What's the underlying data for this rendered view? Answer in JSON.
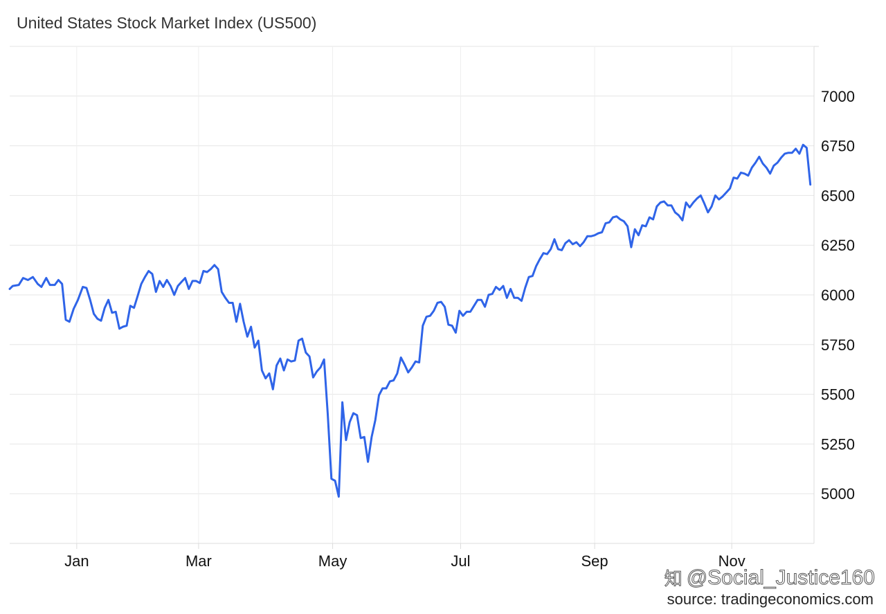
{
  "title": "United States Stock Market Index (US500)",
  "source": "source: tradingeconomics.com",
  "watermark": {
    "text": "@Social_Justice160",
    "icon": "zhihu-logo-icon"
  },
  "colors": {
    "line": "#2f64e8",
    "grid": "#e6e6e6",
    "text": "#111111"
  },
  "chart_data": {
    "type": "line",
    "title": "United States Stock Market Index (US500)",
    "xlabel": "",
    "ylabel": "",
    "ylim": [
      4750,
      7250
    ],
    "yticks": [
      5000,
      5250,
      5500,
      5750,
      6000,
      6250,
      6500,
      6750,
      7000
    ],
    "xticks": [
      {
        "label": "Jan",
        "t": 1
      },
      {
        "label": "Mar",
        "t": 3
      },
      {
        "label": "May",
        "t": 5.2
      },
      {
        "label": "Jul",
        "t": 7.3
      },
      {
        "label": "Sep",
        "t": 9.5
      },
      {
        "label": "Nov",
        "t": 11.75
      }
    ],
    "xlim": [
      -0.1,
      13.1
    ],
    "grid": true,
    "series": [
      {
        "values": [
          [
            -0.1,
            6030
          ],
          [
            -0.05,
            6045
          ],
          [
            0.05,
            6050
          ],
          [
            0.12,
            6085
          ],
          [
            0.2,
            6075
          ],
          [
            0.28,
            6090
          ],
          [
            0.36,
            6055
          ],
          [
            0.42,
            6040
          ],
          [
            0.5,
            6085
          ],
          [
            0.56,
            6050
          ],
          [
            0.64,
            6050
          ],
          [
            0.7,
            6075
          ],
          [
            0.76,
            6055
          ],
          [
            0.82,
            5875
          ],
          [
            0.88,
            5865
          ],
          [
            0.95,
            5930
          ],
          [
            1.02,
            5975
          ],
          [
            1.1,
            6040
          ],
          [
            1.16,
            6035
          ],
          [
            1.22,
            5975
          ],
          [
            1.28,
            5905
          ],
          [
            1.34,
            5880
          ],
          [
            1.4,
            5870
          ],
          [
            1.46,
            5935
          ],
          [
            1.52,
            5975
          ],
          [
            1.58,
            5910
          ],
          [
            1.64,
            5915
          ],
          [
            1.7,
            5830
          ],
          [
            1.76,
            5840
          ],
          [
            1.82,
            5845
          ],
          [
            1.88,
            5945
          ],
          [
            1.94,
            5935
          ],
          [
            2.0,
            5995
          ],
          [
            2.06,
            6055
          ],
          [
            2.12,
            6090
          ],
          [
            2.18,
            6120
          ],
          [
            2.24,
            6105
          ],
          [
            2.3,
            6015
          ],
          [
            2.36,
            6070
          ],
          [
            2.42,
            6040
          ],
          [
            2.48,
            6075
          ],
          [
            2.54,
            6045
          ],
          [
            2.6,
            6000
          ],
          [
            2.66,
            6045
          ],
          [
            2.72,
            6065
          ],
          [
            2.78,
            6085
          ],
          [
            2.84,
            6030
          ],
          [
            2.9,
            6070
          ],
          [
            2.96,
            6070
          ],
          [
            3.02,
            6060
          ],
          [
            3.08,
            6120
          ],
          [
            3.14,
            6115
          ],
          [
            3.2,
            6130
          ],
          [
            3.26,
            6150
          ],
          [
            3.32,
            6130
          ],
          [
            3.38,
            6015
          ],
          [
            3.44,
            5985
          ],
          [
            3.5,
            5960
          ],
          [
            3.56,
            5960
          ],
          [
            3.62,
            5865
          ],
          [
            3.68,
            5955
          ],
          [
            3.74,
            5865
          ],
          [
            3.8,
            5790
          ],
          [
            3.86,
            5840
          ],
          [
            3.92,
            5735
          ],
          [
            3.98,
            5770
          ],
          [
            4.04,
            5620
          ],
          [
            4.1,
            5580
          ],
          [
            4.16,
            5605
          ],
          [
            4.22,
            5525
          ],
          [
            4.28,
            5645
          ],
          [
            4.34,
            5680
          ],
          [
            4.4,
            5620
          ],
          [
            4.46,
            5675
          ],
          [
            4.52,
            5665
          ],
          [
            4.58,
            5670
          ],
          [
            4.64,
            5770
          ],
          [
            4.7,
            5780
          ],
          [
            4.76,
            5710
          ],
          [
            4.82,
            5690
          ],
          [
            4.88,
            5585
          ],
          [
            4.94,
            5615
          ],
          [
            5.0,
            5635
          ],
          [
            5.06,
            5675
          ],
          [
            5.12,
            5400
          ],
          [
            5.18,
            5075
          ],
          [
            5.24,
            5065
          ],
          [
            5.3,
            4985
          ],
          [
            5.36,
            5460
          ],
          [
            5.42,
            5270
          ],
          [
            5.48,
            5360
          ],
          [
            5.54,
            5405
          ],
          [
            5.6,
            5395
          ],
          [
            5.66,
            5280
          ],
          [
            5.72,
            5285
          ],
          [
            5.78,
            5160
          ],
          [
            5.84,
            5285
          ],
          [
            5.9,
            5370
          ],
          [
            5.96,
            5495
          ],
          [
            6.02,
            5530
          ],
          [
            6.08,
            5530
          ],
          [
            6.14,
            5565
          ],
          [
            6.2,
            5570
          ],
          [
            6.26,
            5605
          ],
          [
            6.32,
            5685
          ],
          [
            6.38,
            5650
          ],
          [
            6.44,
            5610
          ],
          [
            6.5,
            5635
          ],
          [
            6.56,
            5665
          ],
          [
            6.62,
            5660
          ],
          [
            6.68,
            5845
          ],
          [
            6.74,
            5890
          ],
          [
            6.8,
            5895
          ],
          [
            6.86,
            5920
          ],
          [
            6.92,
            5960
          ],
          [
            6.98,
            5965
          ],
          [
            7.04,
            5940
          ],
          [
            7.1,
            5850
          ],
          [
            7.16,
            5845
          ],
          [
            7.22,
            5810
          ],
          [
            7.28,
            5920
          ],
          [
            7.34,
            5895
          ],
          [
            7.4,
            5915
          ],
          [
            7.46,
            5915
          ],
          [
            7.52,
            5945
          ],
          [
            7.58,
            5975
          ],
          [
            7.64,
            5975
          ],
          [
            7.7,
            5940
          ],
          [
            7.76,
            6000
          ],
          [
            7.82,
            6005
          ],
          [
            7.88,
            6040
          ],
          [
            7.94,
            6025
          ],
          [
            8.0,
            6045
          ],
          [
            8.06,
            5985
          ],
          [
            8.12,
            6030
          ],
          [
            8.18,
            5985
          ],
          [
            8.24,
            5985
          ],
          [
            8.3,
            5970
          ],
          [
            8.36,
            6035
          ],
          [
            8.42,
            6090
          ],
          [
            8.48,
            6095
          ],
          [
            8.54,
            6145
          ],
          [
            8.6,
            6180
          ],
          [
            8.66,
            6210
          ],
          [
            8.72,
            6205
          ],
          [
            8.78,
            6230
          ],
          [
            8.84,
            6280
          ],
          [
            8.9,
            6230
          ],
          [
            8.96,
            6225
          ],
          [
            9.02,
            6260
          ],
          [
            9.08,
            6275
          ],
          [
            9.14,
            6255
          ],
          [
            9.2,
            6265
          ],
          [
            9.26,
            6245
          ],
          [
            9.32,
            6265
          ],
          [
            9.38,
            6295
          ],
          [
            9.44,
            6295
          ],
          [
            9.5,
            6300
          ],
          [
            9.56,
            6310
          ],
          [
            9.62,
            6315
          ],
          [
            9.68,
            6360
          ],
          [
            9.74,
            6365
          ],
          [
            9.8,
            6390
          ],
          [
            9.86,
            6395
          ],
          [
            9.92,
            6380
          ],
          [
            9.98,
            6370
          ],
          [
            10.04,
            6345
          ],
          [
            10.1,
            6240
          ],
          [
            10.16,
            6330
          ],
          [
            10.22,
            6300
          ],
          [
            10.28,
            6350
          ],
          [
            10.34,
            6345
          ],
          [
            10.4,
            6390
          ],
          [
            10.46,
            6380
          ],
          [
            10.52,
            6445
          ],
          [
            10.58,
            6465
          ],
          [
            10.64,
            6470
          ],
          [
            10.7,
            6450
          ],
          [
            10.76,
            6450
          ],
          [
            10.82,
            6415
          ],
          [
            10.88,
            6400
          ],
          [
            10.94,
            6375
          ],
          [
            11.0,
            6465
          ],
          [
            11.06,
            6440
          ],
          [
            11.12,
            6465
          ],
          [
            11.18,
            6485
          ],
          [
            11.24,
            6500
          ],
          [
            11.3,
            6460
          ],
          [
            11.36,
            6415
          ],
          [
            11.42,
            6445
          ],
          [
            11.48,
            6500
          ],
          [
            11.54,
            6480
          ],
          [
            11.6,
            6495
          ],
          [
            11.66,
            6515
          ],
          [
            11.72,
            6535
          ],
          [
            11.78,
            6590
          ],
          [
            11.84,
            6585
          ],
          [
            11.9,
            6615
          ],
          [
            11.96,
            6610
          ],
          [
            12.02,
            6600
          ],
          [
            12.08,
            6640
          ],
          [
            12.14,
            6665
          ],
          [
            12.2,
            6695
          ],
          [
            12.26,
            6660
          ],
          [
            12.32,
            6640
          ],
          [
            12.38,
            6610
          ],
          [
            12.44,
            6650
          ],
          [
            12.5,
            6665
          ],
          [
            12.56,
            6690
          ],
          [
            12.62,
            6710
          ],
          [
            12.68,
            6715
          ],
          [
            12.74,
            6715
          ],
          [
            12.8,
            6735
          ],
          [
            12.86,
            6710
          ],
          [
            12.92,
            6755
          ],
          [
            12.98,
            6740
          ],
          [
            13.04,
            6555
          ]
        ]
      }
    ]
  }
}
